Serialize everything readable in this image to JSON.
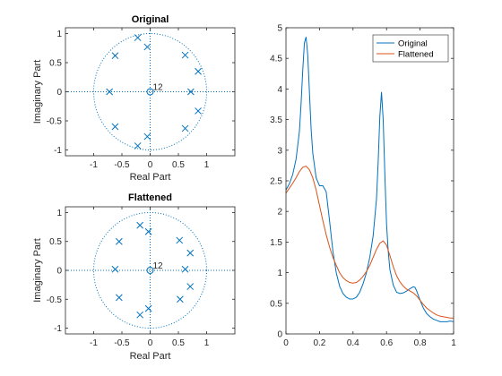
{
  "chart_data": [
    {
      "type": "scatter",
      "title": "Original",
      "xlabel": "Real Part",
      "ylabel": "Imaginary Part",
      "xlim": [
        -1.5,
        1.5
      ],
      "ylim": [
        -1.1,
        1.1
      ],
      "xticks": [
        "-1",
        "-0.5",
        "0",
        "0.5",
        "1"
      ],
      "yticks": [
        "-1",
        "-0.5",
        "0",
        "0.5",
        "1"
      ],
      "unit_circle": true,
      "zero_multiplicity_label": "12",
      "zeros": [
        [
          0,
          0
        ]
      ],
      "poles": [
        [
          -0.22,
          0.93
        ],
        [
          -0.05,
          0.77
        ],
        [
          -0.62,
          0.62
        ],
        [
          0.62,
          0.63
        ],
        [
          0.85,
          0.35
        ],
        [
          -0.72,
          0.0
        ],
        [
          0.72,
          0.0
        ],
        [
          0.85,
          -0.33
        ],
        [
          0.62,
          -0.63
        ],
        [
          -0.62,
          -0.6
        ],
        [
          -0.05,
          -0.77
        ],
        [
          -0.22,
          -0.93
        ]
      ]
    },
    {
      "type": "scatter",
      "title": "Flattened",
      "xlabel": "Real Part",
      "ylabel": "Imaginary Part",
      "xlim": [
        -1.5,
        1.5
      ],
      "ylim": [
        -1.1,
        1.1
      ],
      "xticks": [
        "-1",
        "-0.5",
        "0",
        "0.5",
        "1"
      ],
      "yticks": [
        "-1",
        "-0.5",
        "0",
        "0.5",
        "1"
      ],
      "unit_circle": true,
      "zero_multiplicity_label": "12",
      "zeros": [
        [
          0,
          0
        ]
      ],
      "poles": [
        [
          -0.55,
          0.5
        ],
        [
          -0.18,
          0.78
        ],
        [
          -0.03,
          0.67
        ],
        [
          0.52,
          0.52
        ],
        [
          0.71,
          0.3
        ],
        [
          -0.62,
          0.02
        ],
        [
          0.62,
          0.02
        ],
        [
          0.71,
          -0.28
        ],
        [
          0.53,
          -0.5
        ],
        [
          -0.55,
          -0.47
        ],
        [
          -0.03,
          -0.66
        ],
        [
          -0.18,
          -0.77
        ]
      ]
    },
    {
      "type": "line",
      "xlim": [
        0,
        1
      ],
      "ylim": [
        0,
        5
      ],
      "xticks": [
        "0",
        "0.2",
        "0.4",
        "0.6",
        "0.8",
        "1"
      ],
      "yticks": [
        "0",
        "0.5",
        "1",
        "1.5",
        "2",
        "2.5",
        "3",
        "3.5",
        "4",
        "4.5",
        "5"
      ],
      "legend_position": "top-right",
      "series": [
        {
          "name": "Original",
          "color": "#0072bd",
          "x": [
            0,
            0.02,
            0.04,
            0.06,
            0.08,
            0.09,
            0.1,
            0.11,
            0.12,
            0.13,
            0.14,
            0.15,
            0.16,
            0.18,
            0.2,
            0.22,
            0.24,
            0.26,
            0.28,
            0.3,
            0.32,
            0.34,
            0.36,
            0.38,
            0.4,
            0.42,
            0.44,
            0.46,
            0.48,
            0.5,
            0.52,
            0.54,
            0.55,
            0.56,
            0.57,
            0.58,
            0.59,
            0.6,
            0.61,
            0.62,
            0.64,
            0.66,
            0.68,
            0.7,
            0.72,
            0.74,
            0.76,
            0.77,
            0.78,
            0.8,
            0.82,
            0.84,
            0.86,
            0.88,
            0.9,
            0.92,
            0.94,
            0.96,
            0.98,
            1
          ],
          "y": [
            2.35,
            2.45,
            2.6,
            2.85,
            3.3,
            3.75,
            4.3,
            4.75,
            4.85,
            4.55,
            3.95,
            3.35,
            2.95,
            2.55,
            2.42,
            2.42,
            2.32,
            1.85,
            1.35,
            1.0,
            0.78,
            0.66,
            0.6,
            0.57,
            0.57,
            0.6,
            0.68,
            0.82,
            1.0,
            1.25,
            1.6,
            2.2,
            2.8,
            3.55,
            3.95,
            3.5,
            2.6,
            1.8,
            1.35,
            1.05,
            0.8,
            0.68,
            0.66,
            0.67,
            0.7,
            0.74,
            0.77,
            0.76,
            0.7,
            0.55,
            0.42,
            0.33,
            0.28,
            0.24,
            0.22,
            0.2,
            0.2,
            0.2,
            0.21,
            0.2
          ]
        },
        {
          "name": "Flattened",
          "color": "#d95319",
          "x": [
            0,
            0.02,
            0.04,
            0.06,
            0.08,
            0.1,
            0.12,
            0.14,
            0.16,
            0.18,
            0.2,
            0.22,
            0.24,
            0.26,
            0.28,
            0.3,
            0.32,
            0.34,
            0.36,
            0.38,
            0.4,
            0.42,
            0.44,
            0.46,
            0.48,
            0.5,
            0.52,
            0.54,
            0.56,
            0.58,
            0.6,
            0.62,
            0.64,
            0.66,
            0.68,
            0.7,
            0.72,
            0.74,
            0.76,
            0.78,
            0.8,
            0.82,
            0.84,
            0.86,
            0.88,
            0.9,
            0.92,
            0.94,
            0.96,
            0.98,
            1
          ],
          "y": [
            2.3,
            2.38,
            2.46,
            2.55,
            2.65,
            2.72,
            2.74,
            2.68,
            2.55,
            2.35,
            2.1,
            1.85,
            1.62,
            1.42,
            1.25,
            1.12,
            1.0,
            0.92,
            0.87,
            0.84,
            0.83,
            0.84,
            0.88,
            0.94,
            1.02,
            1.12,
            1.25,
            1.38,
            1.48,
            1.52,
            1.45,
            1.28,
            1.1,
            0.95,
            0.85,
            0.78,
            0.73,
            0.7,
            0.67,
            0.62,
            0.55,
            0.48,
            0.42,
            0.38,
            0.34,
            0.31,
            0.29,
            0.28,
            0.27,
            0.26,
            0.26
          ]
        }
      ]
    }
  ]
}
